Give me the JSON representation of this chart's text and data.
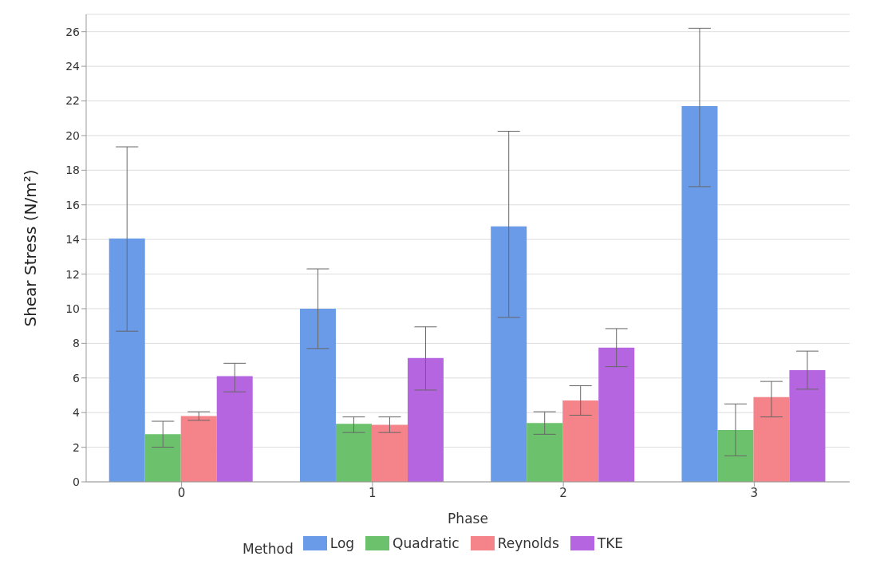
{
  "chart_data": {
    "type": "bar",
    "xlabel": "Phase",
    "ylabel": "Shear Stress (N/m²)",
    "legend_title": "Method",
    "categories": [
      "0",
      "1",
      "2",
      "3"
    ],
    "series": [
      {
        "name": "Log",
        "color": "#6a9be8",
        "values": [
          14.05,
          10.0,
          14.75,
          21.7
        ],
        "errors": [
          [
            8.7,
            19.35
          ],
          [
            7.7,
            12.3
          ],
          [
            9.5,
            20.25
          ],
          [
            17.05,
            26.2
          ]
        ]
      },
      {
        "name": "Quadratic",
        "color": "#6cc26c",
        "values": [
          2.75,
          3.35,
          3.4,
          3.0
        ],
        "errors": [
          [
            2.0,
            3.5
          ],
          [
            2.85,
            3.75
          ],
          [
            2.75,
            4.05
          ],
          [
            1.5,
            4.5
          ]
        ]
      },
      {
        "name": "Reynolds",
        "color": "#f4838a",
        "values": [
          3.8,
          3.3,
          4.7,
          4.9
        ],
        "errors": [
          [
            3.55,
            4.05
          ],
          [
            2.85,
            3.75
          ],
          [
            3.85,
            5.55
          ],
          [
            3.75,
            5.8
          ]
        ]
      },
      {
        "name": "TKE",
        "color": "#b565e0",
        "values": [
          6.1,
          7.15,
          7.75,
          6.45
        ],
        "errors": [
          [
            5.2,
            6.85
          ],
          [
            5.3,
            8.95
          ],
          [
            6.65,
            8.85
          ],
          [
            5.35,
            7.55
          ]
        ]
      }
    ],
    "ylim": [
      0,
      27
    ],
    "yticks": [
      0,
      2,
      4,
      6,
      8,
      10,
      12,
      14,
      16,
      18,
      20,
      22,
      24,
      26
    ],
    "grid": "y",
    "legend": "bottom"
  }
}
